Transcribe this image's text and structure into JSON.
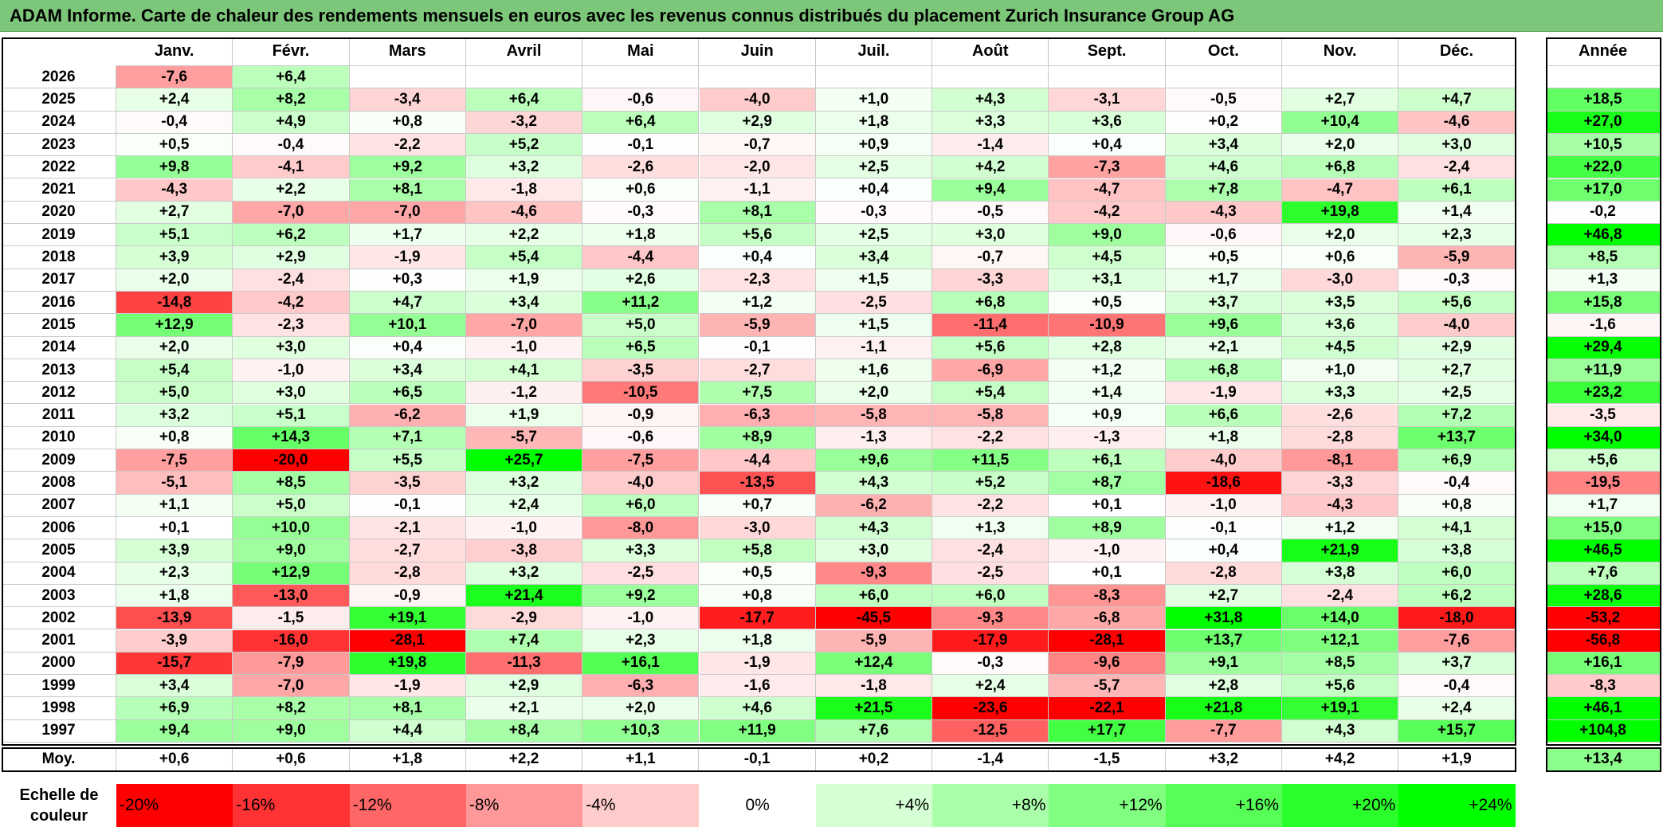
{
  "title": "ADAM Informe. Carte de chaleur des rendements mensuels en euros avec les revenus connus distribués du placement Zurich Insurance Group AG",
  "chart_data": {
    "type": "heatmap",
    "title": "ADAM Informe. Carte de chaleur des rendements mensuels en euros avec les revenus connus distribués du placement Zurich Insurance Group AG",
    "columns": [
      "Janv.",
      "Févr.",
      "Mars",
      "Avril",
      "Mai",
      "Juin",
      "Juil.",
      "Août",
      "Sept.",
      "Oct.",
      "Nov.",
      "Déc."
    ],
    "year_column_label": "Année",
    "avg_row_label": "Moy.",
    "rows": [
      {
        "year": "2026",
        "values": [
          "-7,6",
          "+6,4",
          "",
          "",
          "",
          "",
          "",
          "",
          "",
          "",
          "",
          ""
        ],
        "annual": ""
      },
      {
        "year": "2025",
        "values": [
          "+2,4",
          "+8,2",
          "-3,4",
          "+6,4",
          "-0,6",
          "-4,0",
          "+1,0",
          "+4,3",
          "-3,1",
          "-0,5",
          "+2,7",
          "+4,7"
        ],
        "annual": "+18,5"
      },
      {
        "year": "2024",
        "values": [
          "-0,4",
          "+4,9",
          "+0,8",
          "-3,2",
          "+6,4",
          "+2,9",
          "+1,8",
          "+3,3",
          "+3,6",
          "+0,2",
          "+10,4",
          "-4,6"
        ],
        "annual": "+27,0"
      },
      {
        "year": "2023",
        "values": [
          "+0,5",
          "-0,4",
          "-2,2",
          "+5,2",
          "-0,1",
          "-0,7",
          "+0,9",
          "-1,4",
          "+0,4",
          "+3,4",
          "+2,0",
          "+3,0"
        ],
        "annual": "+10,5"
      },
      {
        "year": "2022",
        "values": [
          "+9,8",
          "-4,1",
          "+9,2",
          "+3,2",
          "-2,6",
          "-2,0",
          "+2,5",
          "+4,2",
          "-7,3",
          "+4,6",
          "+6,8",
          "-2,4"
        ],
        "annual": "+22,0"
      },
      {
        "year": "2021",
        "values": [
          "-4,3",
          "+2,2",
          "+8,1",
          "-1,8",
          "+0,6",
          "-1,1",
          "+0,4",
          "+9,4",
          "-4,7",
          "+7,8",
          "-4,7",
          "+6,1"
        ],
        "annual": "+17,0"
      },
      {
        "year": "2020",
        "values": [
          "+2,7",
          "-7,0",
          "-7,0",
          "-4,6",
          "-0,3",
          "+8,1",
          "-0,3",
          "-0,5",
          "-4,2",
          "-4,3",
          "+19,8",
          "+1,4"
        ],
        "annual": "-0,2"
      },
      {
        "year": "2019",
        "values": [
          "+5,1",
          "+6,2",
          "+1,7",
          "+2,2",
          "+1,8",
          "+5,6",
          "+2,5",
          "+3,0",
          "+9,0",
          "-0,6",
          "+2,0",
          "+2,3"
        ],
        "annual": "+46,8"
      },
      {
        "year": "2018",
        "values": [
          "+3,9",
          "+2,9",
          "-1,9",
          "+5,4",
          "-4,4",
          "+0,4",
          "+3,4",
          "-0,7",
          "+4,5",
          "+0,5",
          "+0,6",
          "-5,9"
        ],
        "annual": "+8,5"
      },
      {
        "year": "2017",
        "values": [
          "+2,0",
          "-2,4",
          "+0,3",
          "+1,9",
          "+2,6",
          "-2,3",
          "+1,5",
          "-3,3",
          "+3,1",
          "+1,7",
          "-3,0",
          "-0,3"
        ],
        "annual": "+1,3"
      },
      {
        "year": "2016",
        "values": [
          "-14,8",
          "-4,2",
          "+4,7",
          "+3,4",
          "+11,2",
          "+1,2",
          "-2,5",
          "+6,8",
          "+0,5",
          "+3,7",
          "+3,5",
          "+5,6"
        ],
        "annual": "+15,8"
      },
      {
        "year": "2015",
        "values": [
          "+12,9",
          "-2,3",
          "+10,1",
          "-7,0",
          "+5,0",
          "-5,9",
          "+1,5",
          "-11,4",
          "-10,9",
          "+9,6",
          "+3,6",
          "-4,0"
        ],
        "annual": "-1,6"
      },
      {
        "year": "2014",
        "values": [
          "+2,0",
          "+3,0",
          "+0,4",
          "-1,0",
          "+6,5",
          "-0,1",
          "-1,1",
          "+5,6",
          "+2,8",
          "+2,1",
          "+4,5",
          "+2,9"
        ],
        "annual": "+29,4"
      },
      {
        "year": "2013",
        "values": [
          "+5,4",
          "-1,0",
          "+3,4",
          "+4,1",
          "-3,5",
          "-2,7",
          "+1,6",
          "-6,9",
          "+1,2",
          "+6,8",
          "+1,0",
          "+2,7"
        ],
        "annual": "+11,9"
      },
      {
        "year": "2012",
        "values": [
          "+5,0",
          "+3,0",
          "+6,5",
          "-1,2",
          "-10,5",
          "+7,5",
          "+2,0",
          "+5,4",
          "+1,4",
          "-1,9",
          "+3,3",
          "+2,5"
        ],
        "annual": "+23,2"
      },
      {
        "year": "2011",
        "values": [
          "+3,2",
          "+5,1",
          "-6,2",
          "+1,9",
          "-0,9",
          "-6,3",
          "-5,8",
          "-5,8",
          "+0,9",
          "+6,6",
          "-2,6",
          "+7,2"
        ],
        "annual": "-3,5"
      },
      {
        "year": "2010",
        "values": [
          "+0,8",
          "+14,3",
          "+7,1",
          "-5,7",
          "-0,6",
          "+8,9",
          "-1,3",
          "-2,2",
          "-1,3",
          "+1,8",
          "-2,8",
          "+13,7"
        ],
        "annual": "+34,0"
      },
      {
        "year": "2009",
        "values": [
          "-7,5",
          "-20,0",
          "+5,5",
          "+25,7",
          "-7,5",
          "-4,4",
          "+9,6",
          "+11,5",
          "+6,1",
          "-4,0",
          "-8,1",
          "+6,9"
        ],
        "annual": "+5,6"
      },
      {
        "year": "2008",
        "values": [
          "-5,1",
          "+8,5",
          "-3,5",
          "+3,2",
          "-4,0",
          "-13,5",
          "+4,3",
          "+5,2",
          "+8,7",
          "-18,6",
          "-3,3",
          "-0,4"
        ],
        "annual": "-19,5"
      },
      {
        "year": "2007",
        "values": [
          "+1,1",
          "+5,0",
          "-0,1",
          "+2,4",
          "+6,0",
          "+0,7",
          "-6,2",
          "-2,2",
          "+0,1",
          "-1,0",
          "-4,3",
          "+0,8"
        ],
        "annual": "+1,7"
      },
      {
        "year": "2006",
        "values": [
          "+0,1",
          "+10,0",
          "-2,1",
          "-1,0",
          "-8,0",
          "-3,0",
          "+4,3",
          "+1,3",
          "+8,9",
          "-0,1",
          "+1,2",
          "+4,1"
        ],
        "annual": "+15,0"
      },
      {
        "year": "2005",
        "values": [
          "+3,9",
          "+9,0",
          "-2,7",
          "-3,8",
          "+3,3",
          "+5,8",
          "+3,0",
          "-2,4",
          "-1,0",
          "+0,4",
          "+21,9",
          "+3,8"
        ],
        "annual": "+46,5"
      },
      {
        "year": "2004",
        "values": [
          "+2,3",
          "+12,9",
          "-2,8",
          "+3,2",
          "-2,5",
          "+0,5",
          "-9,3",
          "-2,5",
          "+0,1",
          "-2,8",
          "+3,8",
          "+6,0"
        ],
        "annual": "+7,6"
      },
      {
        "year": "2003",
        "values": [
          "+1,8",
          "-13,0",
          "-0,9",
          "+21,4",
          "+9,2",
          "+0,8",
          "+6,0",
          "+6,0",
          "-8,3",
          "+2,7",
          "-2,4",
          "+6,2"
        ],
        "annual": "+28,6"
      },
      {
        "year": "2002",
        "values": [
          "-13,9",
          "-1,5",
          "+19,1",
          "-2,9",
          "-1,0",
          "-17,7",
          "-45,5",
          "-9,3",
          "-6,8",
          "+31,8",
          "+14,0",
          "-18,0"
        ],
        "annual": "-53,2"
      },
      {
        "year": "2001",
        "values": [
          "-3,9",
          "-16,0",
          "-28,1",
          "+7,4",
          "+2,3",
          "+1,8",
          "-5,9",
          "-17,9",
          "-28,1",
          "+13,7",
          "+12,1",
          "-7,6"
        ],
        "annual": "-56,8"
      },
      {
        "year": "2000",
        "values": [
          "-15,7",
          "-7,9",
          "+19,8",
          "-11,3",
          "+16,1",
          "-1,9",
          "+12,4",
          "-0,3",
          "-9,6",
          "+9,1",
          "+8,5",
          "+3,7"
        ],
        "annual": "+16,1"
      },
      {
        "year": "1999",
        "values": [
          "+3,4",
          "-7,0",
          "-1,9",
          "+2,9",
          "-6,3",
          "-1,6",
          "-1,8",
          "+2,4",
          "-5,7",
          "+2,8",
          "+5,6",
          "-0,4"
        ],
        "annual": "-8,3"
      },
      {
        "year": "1998",
        "values": [
          "+6,9",
          "+8,2",
          "+8,1",
          "+2,1",
          "+2,0",
          "+4,6",
          "+21,5",
          "-23,6",
          "-22,1",
          "+21,8",
          "+19,1",
          "+2,4"
        ],
        "annual": "+46,1"
      },
      {
        "year": "1997",
        "values": [
          "+9,4",
          "+9,0",
          "+4,4",
          "+8,4",
          "+10,3",
          "+11,9",
          "+7,6",
          "-12,5",
          "+17,7",
          "-7,7",
          "+4,3",
          "+15,7"
        ],
        "annual": "+104,8"
      }
    ],
    "averages": [
      "+0,6",
      "+0,6",
      "+1,8",
      "+2,2",
      "+1,1",
      "-0,1",
      "+0,2",
      "-1,4",
      "-1,5",
      "+3,2",
      "+4,2",
      "+1,9"
    ],
    "average_annual": "+13,4",
    "legend": {
      "label": "Echelle de couleur",
      "stops": [
        "-20%",
        "-16%",
        "-12%",
        "-8%",
        "-4%",
        "0%",
        "+4%",
        "+8%",
        "+12%",
        "+16%",
        "+20%",
        "+24%"
      ]
    },
    "colors": {
      "negative_max": "#ff0000",
      "neutral": "#ffffff",
      "positive_max": "#00ff00",
      "title_bar": "#7dc77a"
    }
  }
}
